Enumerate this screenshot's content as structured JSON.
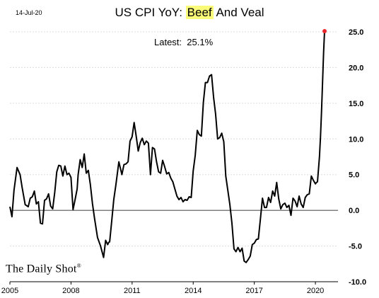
{
  "header": {
    "date": "14-Jul-20",
    "title_prefix": "US CPI YoY: ",
    "title_highlight": "Beef",
    "title_suffix": " And Veal",
    "latest_label": "Latest:",
    "latest_value": "25.1%"
  },
  "brand": {
    "name": "The Daily Shot",
    "mark": "®"
  },
  "colors": {
    "line": "#000000",
    "marker": "#e8262b",
    "highlight": "#fbfb7a",
    "grid": "#dddddd"
  },
  "chart_data": {
    "type": "line",
    "title": "US CPI YoY: Beef And Veal",
    "xlim": [
      2005.0,
      2020.9
    ],
    "ylim": [
      -10,
      25
    ],
    "x_ticks": [
      2005,
      2008,
      2011,
      2014,
      2017,
      2020
    ],
    "x_tick_labels": [
      "2005",
      "2008",
      "2011",
      "2014",
      "2017",
      "2020"
    ],
    "y_ticks": [
      -10,
      -5,
      0,
      5,
      10,
      15,
      20,
      25
    ],
    "y_tick_labels": [
      "-10.0",
      "-5.0",
      "0.0",
      "5.0",
      "10.0",
      "15.0",
      "20.0",
      "25.0"
    ],
    "grid": "horizontal",
    "latest": {
      "x": 2020.45,
      "y": 25.1
    },
    "series": [
      {
        "x": [
          2005.0,
          2005.1,
          2005.2,
          2005.35,
          2005.5,
          2005.6,
          2005.75,
          2005.9,
          2006.0,
          2006.1,
          2006.2,
          2006.3,
          2006.4,
          2006.5,
          2006.6,
          2006.7,
          2006.8,
          2006.9,
          2007.0,
          2007.1,
          2007.2,
          2007.3,
          2007.4,
          2007.5,
          2007.6,
          2007.7,
          2007.8,
          2007.9,
          2008.0,
          2008.1,
          2008.2,
          2008.3,
          2008.35,
          2008.45,
          2008.55,
          2008.65,
          2008.75,
          2008.85,
          2008.95,
          2009.05,
          2009.15,
          2009.3,
          2009.45,
          2009.6,
          2009.7,
          2009.8,
          2009.85,
          2009.9,
          2010.0,
          2010.1,
          2010.2,
          2010.35,
          2010.5,
          2010.6,
          2010.7,
          2010.8,
          2010.9,
          2011.0,
          2011.1,
          2011.2,
          2011.3,
          2011.4,
          2011.5,
          2011.6,
          2011.7,
          2011.8,
          2011.9,
          2012.0,
          2012.1,
          2012.2,
          2012.3,
          2012.4,
          2012.5,
          2012.6,
          2012.7,
          2012.8,
          2012.9,
          2013.0,
          2013.1,
          2013.2,
          2013.3,
          2013.4,
          2013.5,
          2013.6,
          2013.7,
          2013.8,
          2013.9,
          2014.0,
          2014.1,
          2014.2,
          2014.3,
          2014.4,
          2014.5,
          2014.6,
          2014.7,
          2014.8,
          2014.9,
          2015.0,
          2015.1,
          2015.2,
          2015.3,
          2015.4,
          2015.5,
          2015.6,
          2015.7,
          2015.8,
          2015.9,
          2016.0,
          2016.1,
          2016.2,
          2016.3,
          2016.4,
          2016.5,
          2016.6,
          2016.7,
          2016.8,
          2016.9,
          2017.0,
          2017.1,
          2017.2,
          2017.3,
          2017.4,
          2017.5,
          2017.6,
          2017.7,
          2017.8,
          2017.9,
          2018.0,
          2018.1,
          2018.2,
          2018.3,
          2018.4,
          2018.5,
          2018.6,
          2018.7,
          2018.8,
          2018.9,
          2019.0,
          2019.1,
          2019.2,
          2019.3,
          2019.4,
          2019.5,
          2019.6,
          2019.7,
          2019.8,
          2019.9,
          2020.0,
          2020.05,
          2020.1,
          2020.2,
          2020.25,
          2020.3,
          2020.35,
          2020.4,
          2020.45
        ],
        "y": [
          0.5,
          -0.9,
          2.8,
          6.0,
          5.0,
          3.2,
          0.8,
          0.5,
          1.7,
          1.9,
          2.7,
          0.9,
          1.2,
          -1.8,
          -1.9,
          1.4,
          1.6,
          2.3,
          0.6,
          0.2,
          2.5,
          5.4,
          6.3,
          6.2,
          4.8,
          6.2,
          5.0,
          5.2,
          4.6,
          0.1,
          1.5,
          3.0,
          5.0,
          7.1,
          6.0,
          7.9,
          5.2,
          5.6,
          3.6,
          1.0,
          -1.0,
          -3.8,
          -5.0,
          -6.6,
          -4.2,
          -4.8,
          -4.5,
          -4.4,
          -1.5,
          1.5,
          3.5,
          6.8,
          5.0,
          6.4,
          6.5,
          6.8,
          9.7,
          10.3,
          12.3,
          10.4,
          8.3,
          9.5,
          10.1,
          9.2,
          9.7,
          9.4,
          5.0,
          8.8,
          8.6,
          6.8,
          5.4,
          5.2,
          7.0,
          6.1,
          5.1,
          5.3,
          4.5,
          4.0,
          3.0,
          2.0,
          1.5,
          1.8,
          1.2,
          1.5,
          1.4,
          1.9,
          1.8,
          5.5,
          7.7,
          11.2,
          10.6,
          10.4,
          15.1,
          17.9,
          17.9,
          18.8,
          19.0,
          15.8,
          13.5,
          10.0,
          10.2,
          10.8,
          9.6,
          4.8,
          2.8,
          0.8,
          -1.8,
          -5.4,
          -5.8,
          -5.2,
          -5.8,
          -5.3,
          -7.1,
          -7.3,
          -6.9,
          -6.4,
          -4.8,
          -4.6,
          -4.1,
          -4.0,
          -1.2,
          1.7,
          0.4,
          0.4,
          1.8,
          1.1,
          2.7,
          2.0,
          3.9,
          1.6,
          0.2,
          0.8,
          1.0,
          0.4,
          0.7,
          -0.7,
          1.7,
          1.3,
          0.5,
          2.0,
          0.9,
          0.4,
          1.8,
          2.2,
          2.3,
          4.8,
          4.2,
          3.7,
          3.9,
          4.0,
          7.5,
          10.4,
          13.8,
          18.0,
          22.0,
          25.1
        ]
      }
    ]
  }
}
